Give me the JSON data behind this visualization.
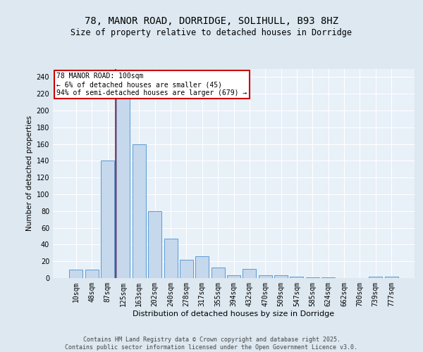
{
  "title_line1": "78, MANOR ROAD, DORRIDGE, SOLIHULL, B93 8HZ",
  "title_line2": "Size of property relative to detached houses in Dorridge",
  "xlabel": "Distribution of detached houses by size in Dorridge",
  "ylabel": "Number of detached properties",
  "categories": [
    "10sqm",
    "48sqm",
    "87sqm",
    "125sqm",
    "163sqm",
    "202sqm",
    "240sqm",
    "278sqm",
    "317sqm",
    "355sqm",
    "394sqm",
    "432sqm",
    "470sqm",
    "509sqm",
    "547sqm",
    "585sqm",
    "624sqm",
    "662sqm",
    "700sqm",
    "739sqm",
    "777sqm"
  ],
  "values": [
    10,
    10,
    140,
    215,
    160,
    80,
    47,
    22,
    26,
    13,
    3,
    11,
    3,
    3,
    2,
    1,
    1,
    0,
    0,
    2,
    2
  ],
  "bar_color": "#c5d8ec",
  "bar_edge_color": "#5b9bd5",
  "highlight_line_after_index": 2,
  "highlight_color": "#cc0000",
  "annotation_text": "78 MANOR ROAD: 100sqm\n← 6% of detached houses are smaller (45)\n94% of semi-detached houses are larger (679) →",
  "annotation_box_color": "#ffffff",
  "annotation_box_edge": "#cc0000",
  "bg_color": "#dde8f0",
  "plot_bg_color": "#e8f0f8",
  "grid_color": "#ffffff",
  "footer_text": "Contains HM Land Registry data © Crown copyright and database right 2025.\nContains public sector information licensed under the Open Government Licence v3.0.",
  "ylim": [
    0,
    250
  ],
  "yticks": [
    0,
    20,
    40,
    60,
    80,
    100,
    120,
    140,
    160,
    180,
    200,
    220,
    240
  ],
  "title_fontsize": 10,
  "subtitle_fontsize": 8.5,
  "xlabel_fontsize": 8,
  "ylabel_fontsize": 7.5,
  "tick_fontsize": 7,
  "annotation_fontsize": 7,
  "footer_fontsize": 6
}
